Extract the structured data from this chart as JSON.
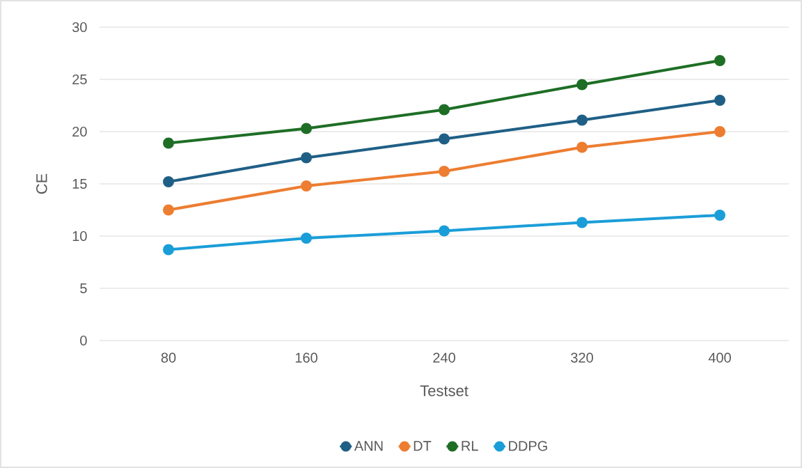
{
  "chart_data": {
    "type": "line",
    "xlabel": "Testset",
    "ylabel": "CE",
    "categories": [
      "80",
      "160",
      "240",
      "320",
      "400"
    ],
    "series": [
      {
        "name": "ANN",
        "color": "#1f5f86",
        "values": [
          15.2,
          17.5,
          19.3,
          21.1,
          23.0
        ]
      },
      {
        "name": "DT",
        "color": "#ed7d31",
        "values": [
          12.5,
          14.8,
          16.2,
          18.5,
          20.0
        ]
      },
      {
        "name": "RL",
        "color": "#1e6e26",
        "values": [
          18.9,
          20.3,
          22.1,
          24.5,
          26.8
        ]
      },
      {
        "name": "DDPG",
        "color": "#1a9ed8",
        "values": [
          8.7,
          9.8,
          10.5,
          11.3,
          12.0
        ]
      }
    ],
    "ylim": [
      0,
      30
    ],
    "yticks": [
      0,
      5,
      10,
      15,
      20,
      25,
      30
    ],
    "grid": "y",
    "legend": "bottom",
    "marker": "circle",
    "line_style": "solid"
  }
}
